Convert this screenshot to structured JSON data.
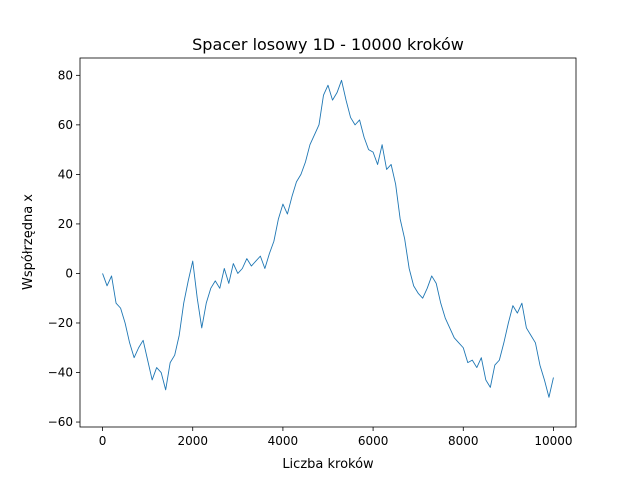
{
  "chart_data": {
    "type": "line",
    "title": "Spacer losowy 1D - 10000 kroków",
    "xlabel": "Liczba kroków",
    "ylabel": "Współrzędna x",
    "xlim": [
      -500,
      10500
    ],
    "ylim": [
      -62,
      87
    ],
    "xticks": [
      0,
      2000,
      4000,
      6000,
      8000,
      10000
    ],
    "xtick_labels": [
      "0",
      "2000",
      "4000",
      "6000",
      "8000",
      "10000"
    ],
    "yticks": [
      -60,
      -40,
      -20,
      0,
      20,
      40,
      60,
      80
    ],
    "ytick_labels": [
      "−60",
      "−40",
      "−20",
      "0",
      "20",
      "40",
      "60",
      "80"
    ],
    "grid": false,
    "legend": "none",
    "series": [
      {
        "color": "#1f77b4",
        "x": [
          0,
          100,
          200,
          300,
          400,
          500,
          600,
          700,
          800,
          900,
          1000,
          1100,
          1200,
          1300,
          1400,
          1500,
          1600,
          1700,
          1800,
          1900,
          2000,
          2100,
          2200,
          2300,
          2400,
          2500,
          2600,
          2700,
          2800,
          2900,
          3000,
          3100,
          3200,
          3300,
          3400,
          3500,
          3600,
          3700,
          3800,
          3900,
          4000,
          4100,
          4200,
          4300,
          4400,
          4500,
          4600,
          4700,
          4800,
          4900,
          5000,
          5100,
          5200,
          5300,
          5400,
          5500,
          5600,
          5700,
          5800,
          5900,
          6000,
          6100,
          6200,
          6300,
          6400,
          6500,
          6600,
          6700,
          6800,
          6900,
          7000,
          7100,
          7200,
          7300,
          7400,
          7500,
          7600,
          7700,
          7800,
          7900,
          8000,
          8100,
          8200,
          8300,
          8400,
          8500,
          8600,
          8700,
          8800,
          8900,
          9000,
          9100,
          9200,
          9300,
          9400,
          9500,
          9600,
          9700,
          9800,
          9900,
          10000
        ],
        "y": [
          0,
          -5,
          -1,
          -12,
          -14,
          -20,
          -28,
          -34,
          -30,
          -27,
          -35,
          -43,
          -38,
          -40,
          -47,
          -36,
          -33,
          -25,
          -12,
          -3,
          5,
          -10,
          -22,
          -12,
          -6,
          -3,
          -6,
          2,
          -4,
          4,
          0,
          2,
          6,
          3,
          5,
          7,
          2,
          8,
          13,
          22,
          28,
          24,
          31,
          37,
          40,
          45,
          52,
          56,
          60,
          72,
          76,
          70,
          73,
          78,
          70,
          63,
          60,
          62,
          55,
          50,
          49,
          44,
          52,
          42,
          44,
          36,
          22,
          14,
          2,
          -5,
          -8,
          -10,
          -6,
          -1,
          -4,
          -12,
          -18,
          -22,
          -26,
          -28,
          -30,
          -36,
          -35,
          -38,
          -34,
          -43,
          -46,
          -37,
          -35,
          -28,
          -20,
          -13,
          -16,
          -12,
          -22,
          -25,
          -28,
          -37,
          -43,
          -50,
          -42
        ]
      }
    ]
  }
}
